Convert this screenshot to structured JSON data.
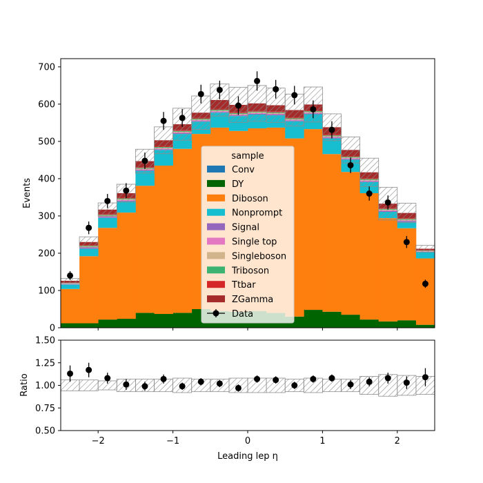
{
  "chart_data": [
    {
      "type": "bar",
      "stacked": true,
      "ylabel": "Events",
      "ylim": [
        0,
        722
      ],
      "yticks": [
        "0",
        "100",
        "200",
        "300",
        "400",
        "500",
        "600",
        "700"
      ],
      "bin_edges": [
        -2.5,
        -2.25,
        -2.0,
        -1.75,
        -1.5,
        -1.25,
        -1.0,
        -0.75,
        -0.5,
        -0.25,
        0.0,
        0.25,
        0.5,
        0.75,
        1.0,
        1.25,
        1.5,
        1.75,
        2.0,
        2.25,
        2.5
      ],
      "legend": {
        "title": "sample",
        "position": "center"
      },
      "series": [
        {
          "name": "Conv",
          "color": "#1f77b4",
          "values": [
            0,
            0,
            0,
            0,
            0,
            0,
            0,
            0,
            0,
            0,
            0,
            0,
            0,
            0,
            0,
            0,
            0,
            0,
            0,
            0
          ]
        },
        {
          "name": "DY",
          "color": "#006400",
          "values": [
            12,
            12,
            22,
            24,
            40,
            37,
            40,
            50,
            45,
            43,
            45,
            40,
            30,
            48,
            43,
            35,
            22,
            17,
            20,
            8
          ]
        },
        {
          "name": "Diboson",
          "color": "#ff7f0e",
          "values": [
            92,
            180,
            246,
            285,
            341,
            398,
            440,
            470,
            492,
            485,
            490,
            497,
            478,
            485,
            423,
            383,
            339,
            277,
            247,
            178
          ]
        },
        {
          "name": "Nonprompt",
          "color": "#17becf",
          "values": [
            12,
            20,
            27,
            30,
            40,
            42,
            40,
            33,
            40,
            40,
            37,
            33,
            46,
            40,
            42,
            33,
            30,
            17,
            17,
            17
          ]
        },
        {
          "name": "Signal",
          "color": "#9467bd",
          "values": [
            1,
            2,
            2,
            2,
            2,
            2,
            2,
            2,
            2,
            2,
            2,
            2,
            2,
            2,
            2,
            2,
            2,
            2,
            2,
            1
          ]
        },
        {
          "name": "Single top",
          "color": "#e377c2",
          "values": [
            1,
            2,
            2,
            2,
            2,
            2,
            2,
            2,
            2,
            2,
            2,
            2,
            2,
            2,
            2,
            2,
            2,
            2,
            2,
            1
          ]
        },
        {
          "name": "Singleboson",
          "color": "#d2b48c",
          "values": [
            1,
            2,
            2,
            2,
            2,
            2,
            2,
            2,
            2,
            2,
            2,
            2,
            2,
            2,
            2,
            2,
            2,
            2,
            2,
            1
          ]
        },
        {
          "name": "Triboson",
          "color": "#3cb371",
          "values": [
            1,
            2,
            2,
            2,
            2,
            2,
            2,
            2,
            2,
            2,
            2,
            2,
            2,
            2,
            2,
            2,
            2,
            2,
            2,
            1
          ]
        },
        {
          "name": "Ttbar",
          "color": "#d62728",
          "values": [
            1,
            2,
            2,
            2,
            2,
            2,
            2,
            2,
            2,
            2,
            2,
            2,
            2,
            2,
            2,
            2,
            2,
            2,
            2,
            1
          ]
        },
        {
          "name": "ZGamma",
          "color": "#a52a2a",
          "values": [
            5,
            8,
            12,
            12,
            16,
            16,
            16,
            14,
            24,
            20,
            20,
            17,
            20,
            16,
            20,
            16,
            16,
            12,
            14,
            4
          ]
        }
      ],
      "uncertainty": {
        "pattern": "hatched",
        "values": [
          6,
          14,
          18,
          24,
          32,
          36,
          43,
          45,
          43,
          47,
          48,
          46,
          43,
          47,
          36,
          35,
          38,
          44,
          26,
          9
        ]
      },
      "data": {
        "name": "Data",
        "values": [
          140,
          268,
          340,
          368,
          448,
          555,
          563,
          627,
          638,
          596,
          662,
          640,
          624,
          586,
          531,
          436,
          360,
          336,
          230,
          118
        ],
        "errors": [
          12,
          17,
          19,
          20,
          22,
          24,
          24,
          25,
          25,
          25,
          26,
          25,
          25,
          24,
          23,
          21,
          19,
          19,
          16,
          11
        ]
      }
    },
    {
      "type": "scatter",
      "xlabel": "Leading lep η",
      "ylabel": "Ratio",
      "xlim": [
        -2.5,
        2.5
      ],
      "ylim": [
        0.5,
        1.5
      ],
      "xticks": [
        "−2",
        "−1",
        "0",
        "1",
        "2"
      ],
      "yticks": [
        "0.50",
        "0.75",
        "1.00",
        "1.25",
        "1.50"
      ],
      "ratio": [
        1.13,
        1.17,
        1.08,
        1.01,
        0.99,
        1.07,
        0.99,
        1.04,
        1.02,
        0.97,
        1.07,
        1.06,
        1.0,
        1.07,
        1.08,
        1.01,
        1.04,
        1.08,
        1.03,
        1.09
      ],
      "ratio_errors": [
        0.09,
        0.08,
        0.06,
        0.06,
        0.05,
        0.05,
        0.04,
        0.04,
        0.04,
        0.04,
        0.04,
        0.04,
        0.04,
        0.04,
        0.04,
        0.05,
        0.05,
        0.06,
        0.07,
        0.1
      ],
      "band_halfwidth": [
        0.06,
        0.06,
        0.05,
        0.07,
        0.07,
        0.07,
        0.08,
        0.07,
        0.07,
        0.08,
        0.08,
        0.08,
        0.07,
        0.08,
        0.07,
        0.07,
        0.1,
        0.12,
        0.11,
        0.1
      ]
    }
  ]
}
